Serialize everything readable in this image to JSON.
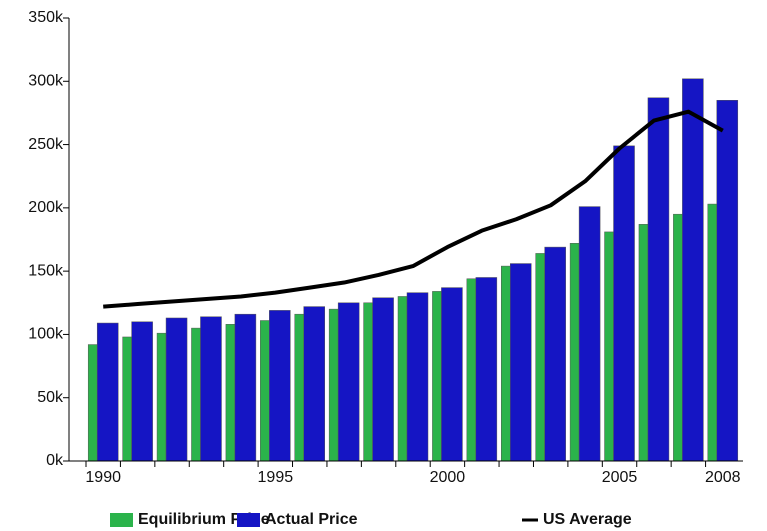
{
  "chart_data": {
    "type": "bar",
    "categories": [
      "1990",
      null,
      null,
      null,
      null,
      "1995",
      null,
      null,
      null,
      null,
      "2000",
      null,
      null,
      null,
      null,
      "2005",
      null,
      null,
      "2008"
    ],
    "series": [
      {
        "name": "Equilibrium Price",
        "color": "#2bb34b",
        "type": "bar",
        "values": [
          92000,
          98000,
          101000,
          105000,
          108000,
          111000,
          116000,
          120000,
          125000,
          130000,
          134000,
          144000,
          154000,
          164000,
          172000,
          181000,
          187000,
          195000,
          203000
        ]
      },
      {
        "name": "Actual Price",
        "color": "#1515c4",
        "type": "bar",
        "values": [
          109000,
          110000,
          113000,
          114000,
          116000,
          119000,
          122000,
          125000,
          129000,
          133000,
          137000,
          145000,
          156000,
          169000,
          201000,
          249000,
          287000,
          302000,
          285000
        ]
      },
      {
        "name": "US Average",
        "color": "#000000",
        "type": "line",
        "values": [
          122000,
          124000,
          126000,
          128000,
          130000,
          133000,
          137000,
          141000,
          147000,
          154000,
          169000,
          182000,
          191000,
          202000,
          221000,
          247000,
          269000,
          276000,
          261000
        ]
      }
    ],
    "ylim": [
      0,
      350000
    ],
    "yticks": [
      {
        "value": 0,
        "label": "0k"
      },
      {
        "value": 50000,
        "label": "50k"
      },
      {
        "value": 100000,
        "label": "100k"
      },
      {
        "value": 150000,
        "label": "150k"
      },
      {
        "value": 200000,
        "label": "200k"
      },
      {
        "value": 250000,
        "label": "250k"
      },
      {
        "value": 300000,
        "label": "300k"
      },
      {
        "value": 350000,
        "label": "350k"
      }
    ],
    "grid": false
  }
}
